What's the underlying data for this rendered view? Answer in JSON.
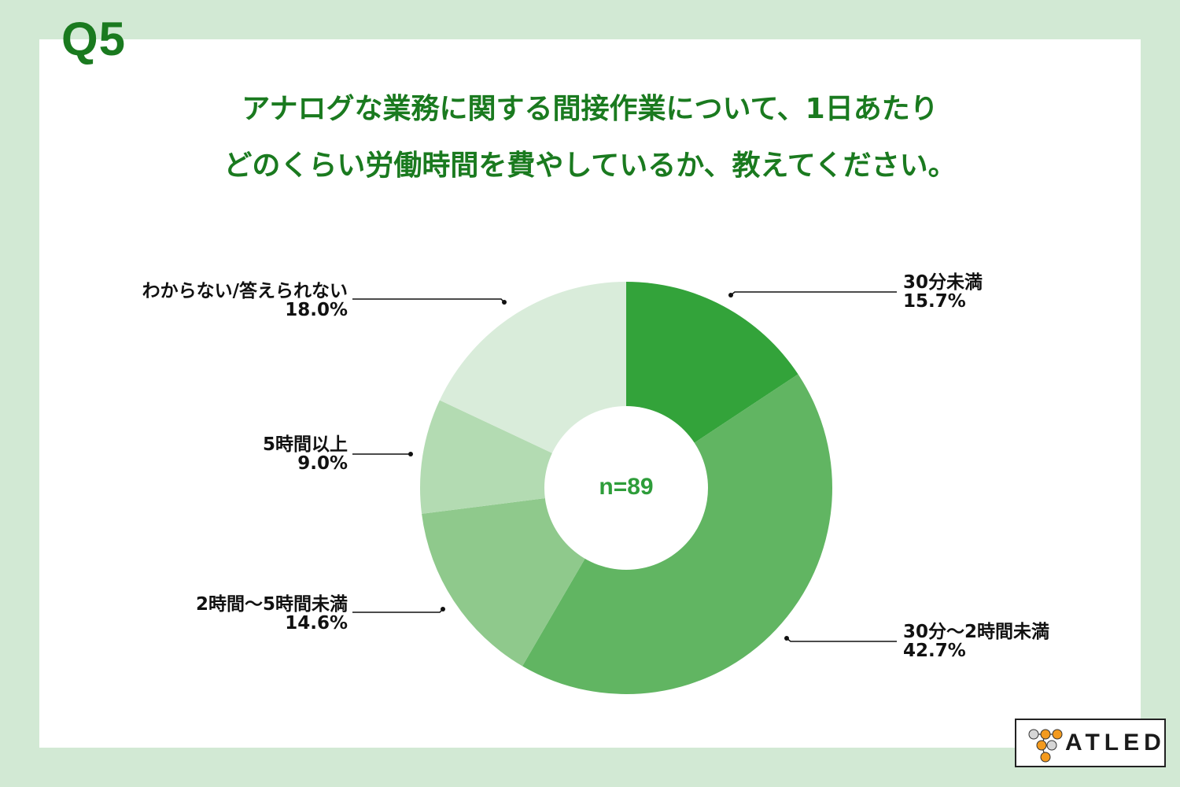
{
  "header": {
    "question_number": "Q5",
    "title_line1": "アナログな業務に関する間接作業について、1日あたり",
    "title_line2": "どのくらい労働時間を費やしているか、教えてください。"
  },
  "center_label": "n=89",
  "labels": {
    "s1": {
      "name": "30分未満",
      "value": "15.7%"
    },
    "s2": {
      "name": "30分〜2時間未満",
      "value": "42.7%"
    },
    "s3": {
      "name": "2時間〜5時間未満",
      "value": "14.6%"
    },
    "s4": {
      "name": "5時間以上",
      "value": "9.0%"
    },
    "s5": {
      "name": "わからない/答えられない",
      "value": "18.0%"
    }
  },
  "logo": {
    "text": "ATLED"
  },
  "colors": {
    "title": "#1a7a1f",
    "background": "#d2e9d4",
    "s1": "#33a33a",
    "s2": "#61b562",
    "s3": "#8fc98c",
    "s4": "#b3dbb2",
    "s5": "#d9ecda"
  },
  "chart_data": {
    "type": "pie",
    "variant": "donut",
    "title": "アナログな業務に関する間接作業について、1日あたりどのくらい労働時間を費やしているか、教えてください。",
    "sample_size": "n=89",
    "categories": [
      "30分未満",
      "30分〜2時間未満",
      "2時間〜5時間未満",
      "5時間以上",
      "わからない/答えられない"
    ],
    "values": [
      15.7,
      42.7,
      14.6,
      9.0,
      18.0
    ],
    "unit": "%",
    "start_angle": "12 o'clock, clockwise"
  }
}
